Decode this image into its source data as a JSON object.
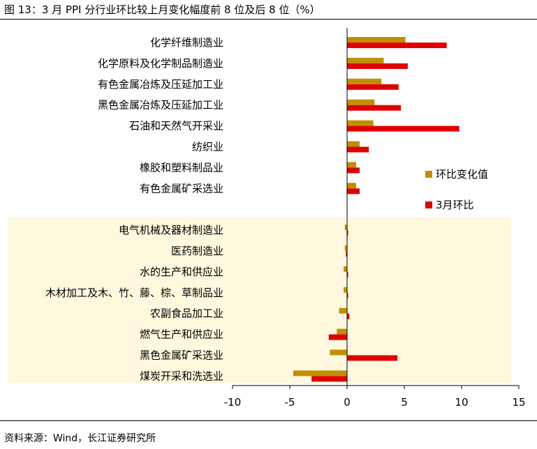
{
  "title": "图 13：3 月 PPI 分行业环比较上月变化幅度前 8 位及后 8 位（%）",
  "source": "资料来源：Wind，长江证券研究所",
  "chart_data": {
    "type": "bar",
    "orientation": "horizontal",
    "categories": [
      "化学纤维制造业",
      "化学原料及化学制品制造业",
      "有色金属冶炼及压延加工业",
      "黑色金属冶炼及压延加工业",
      "石油和天然气开采业",
      "纺织业",
      "橡胶和塑料制品业",
      "有色金属矿采选业",
      "",
      "电气机械及器材制造业",
      "医药制造业",
      "水的生产和供应业",
      "木材加工及木、竹、藤、棕、草制品业",
      "农副食品加工业",
      "燃气生产和供应业",
      "黑色金属矿采选业",
      "煤炭开采和洗选业"
    ],
    "series": [
      {
        "name": "环比变化值",
        "color": "#C09000",
        "values": [
          5.1,
          3.2,
          3.0,
          2.4,
          2.3,
          1.1,
          0.8,
          0.8,
          null,
          -0.2,
          -0.2,
          -0.3,
          -0.3,
          -0.7,
          -0.9,
          -1.5,
          -4.7
        ]
      },
      {
        "name": "3月环比",
        "color": "#E00000",
        "values": [
          8.7,
          5.3,
          4.5,
          4.7,
          9.8,
          1.9,
          1.1,
          1.1,
          null,
          0.0,
          -0.1,
          0.0,
          0.0,
          0.2,
          -1.6,
          4.4,
          -3.1
        ]
      }
    ],
    "xlim": [
      -10,
      15
    ],
    "xticks": [
      -10,
      -5,
      0,
      5,
      10,
      15
    ],
    "highlight_band": {
      "from_category": "电气机械及器材制造业",
      "to_category": "煤炭开采和洗选业",
      "color": "#FFF8DE"
    },
    "legend": {
      "placement": "right",
      "entries": [
        "环比变化值",
        "3月环比"
      ]
    },
    "grid": false
  }
}
